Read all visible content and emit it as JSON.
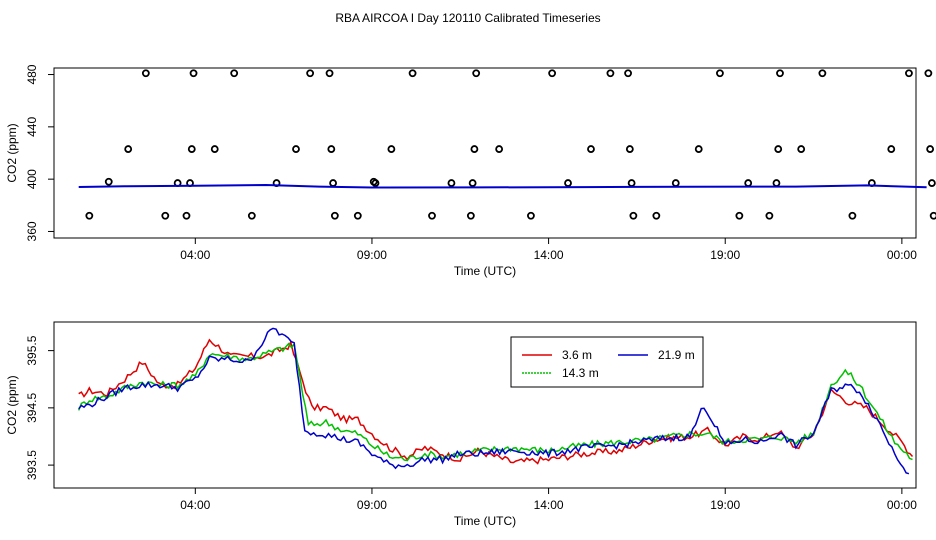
{
  "page": {
    "title": "RBA AIRCOA I  Day 120110  Calibrated Timeseries"
  },
  "colors": {
    "red": "#e00000",
    "green": "#00c000",
    "blue": "#0000cc",
    "axis": "#000000"
  },
  "chart_data": [
    {
      "type": "scatter",
      "xlabel": "Time (UTC)",
      "ylabel": "CO2 (ppm)",
      "xlim": [
        0,
        24.4
      ],
      "ylim": [
        355,
        485
      ],
      "x_ticks": [
        4,
        9,
        14,
        19,
        24
      ],
      "x_tick_labels": [
        "04:00",
        "09:00",
        "14:00",
        "19:00",
        "00:00"
      ],
      "y_ticks": [
        360,
        400,
        440,
        480
      ],
      "y_tick_labels": [
        "360",
        "400",
        "440",
        "480"
      ],
      "points": [
        [
          1.0,
          372
        ],
        [
          1.55,
          398
        ],
        [
          2.1,
          423
        ],
        [
          2.6,
          481
        ],
        [
          3.15,
          372
        ],
        [
          3.5,
          397
        ],
        [
          3.75,
          372
        ],
        [
          3.85,
          397
        ],
        [
          3.9,
          423
        ],
        [
          3.95,
          481
        ],
        [
          4.55,
          423
        ],
        [
          5.1,
          481
        ],
        [
          5.6,
          372
        ],
        [
          6.3,
          397
        ],
        [
          6.85,
          423
        ],
        [
          7.25,
          481
        ],
        [
          7.8,
          481
        ],
        [
          7.85,
          423
        ],
        [
          7.9,
          397
        ],
        [
          7.95,
          372
        ],
        [
          8.6,
          372
        ],
        [
          9.05,
          398
        ],
        [
          9.1,
          397
        ],
        [
          9.55,
          423
        ],
        [
          10.15,
          481
        ],
        [
          10.7,
          372
        ],
        [
          11.25,
          397
        ],
        [
          11.8,
          372
        ],
        [
          11.85,
          397
        ],
        [
          11.9,
          423
        ],
        [
          11.95,
          481
        ],
        [
          12.6,
          423
        ],
        [
          13.5,
          372
        ],
        [
          14.1,
          481
        ],
        [
          14.55,
          397
        ],
        [
          15.2,
          423
        ],
        [
          15.75,
          481
        ],
        [
          16.25,
          481
        ],
        [
          16.3,
          423
        ],
        [
          16.35,
          397
        ],
        [
          16.4,
          372
        ],
        [
          17.05,
          372
        ],
        [
          17.6,
          397
        ],
        [
          18.25,
          423
        ],
        [
          18.85,
          481
        ],
        [
          19.4,
          372
        ],
        [
          19.65,
          397
        ],
        [
          20.25,
          372
        ],
        [
          20.45,
          397
        ],
        [
          20.5,
          423
        ],
        [
          20.55,
          481
        ],
        [
          21.15,
          423
        ],
        [
          21.75,
          481
        ],
        [
          22.6,
          372
        ],
        [
          23.15,
          397
        ],
        [
          23.7,
          423
        ],
        [
          24.2,
          481
        ],
        [
          24.75,
          481
        ],
        [
          24.8,
          423
        ],
        [
          24.85,
          397
        ],
        [
          24.9,
          372
        ]
      ],
      "baseline": [
        [
          0.7,
          394
        ],
        [
          2,
          394.5
        ],
        [
          4,
          395
        ],
        [
          6,
          395.5
        ],
        [
          7.5,
          394.3
        ],
        [
          9,
          393.6
        ],
        [
          12,
          393.7
        ],
        [
          15,
          393.9
        ],
        [
          18,
          394.2
        ],
        [
          21,
          394.3
        ],
        [
          23,
          395.2
        ],
        [
          24.7,
          393.8
        ]
      ]
    },
    {
      "type": "line",
      "xlabel": "Time (UTC)",
      "ylabel": "CO2 (ppm)",
      "xlim": [
        0,
        24.4
      ],
      "ylim": [
        393.1,
        396.0
      ],
      "x_ticks": [
        4,
        9,
        14,
        19,
        24
      ],
      "x_tick_labels": [
        "04:00",
        "09:00",
        "14:00",
        "19:00",
        "00:00"
      ],
      "y_ticks": [
        393.5,
        394.5,
        395.5
      ],
      "y_tick_labels": [
        "393.5",
        "394.5",
        "395.5"
      ],
      "legend": {
        "placement": "top-center",
        "entries": [
          "3.6 m",
          "21.9 m",
          "14.3 m"
        ]
      },
      "series": [
        {
          "name": "3.6 m",
          "color": "#e00000",
          "points": [
            [
              0.7,
              394.7
            ],
            [
              1.0,
              394.8
            ],
            [
              1.5,
              394.75
            ],
            [
              2.0,
              395.0
            ],
            [
              2.5,
              395.3
            ],
            [
              3.0,
              394.9
            ],
            [
              3.5,
              394.9
            ],
            [
              4.0,
              395.2
            ],
            [
              4.4,
              395.7
            ],
            [
              5.0,
              395.4
            ],
            [
              5.5,
              395.4
            ],
            [
              6.0,
              395.4
            ],
            [
              6.7,
              395.6
            ],
            [
              7.3,
              394.5
            ],
            [
              7.7,
              394.5
            ],
            [
              8.2,
              394.3
            ],
            [
              8.6,
              394.3
            ],
            [
              9.0,
              394.05
            ],
            [
              9.5,
              393.8
            ],
            [
              10.0,
              393.65
            ],
            [
              10.5,
              393.8
            ],
            [
              11.0,
              393.7
            ],
            [
              11.5,
              393.6
            ],
            [
              12.0,
              393.75
            ],
            [
              13.0,
              393.55
            ],
            [
              14.0,
              393.6
            ],
            [
              15.0,
              393.7
            ],
            [
              16.0,
              393.75
            ],
            [
              17.0,
              393.95
            ],
            [
              18.0,
              394.0
            ],
            [
              18.5,
              394.1
            ],
            [
              19.0,
              393.85
            ],
            [
              19.5,
              394.0
            ],
            [
              20.0,
              393.95
            ],
            [
              20.5,
              394.1
            ],
            [
              21.0,
              393.8
            ],
            [
              21.5,
              394.05
            ],
            [
              22.0,
              394.8
            ],
            [
              22.5,
              394.6
            ],
            [
              23.0,
              394.5
            ],
            [
              23.5,
              394.2
            ],
            [
              24.0,
              393.9
            ],
            [
              24.3,
              393.65
            ]
          ]
        },
        {
          "name": "14.3 m",
          "color": "#00c000",
          "points": [
            [
              0.7,
              394.5
            ],
            [
              1.0,
              394.65
            ],
            [
              1.5,
              394.7
            ],
            [
              2.0,
              394.85
            ],
            [
              2.5,
              394.95
            ],
            [
              3.0,
              394.9
            ],
            [
              3.5,
              394.9
            ],
            [
              4.0,
              395.05
            ],
            [
              4.4,
              395.45
            ],
            [
              5.0,
              395.4
            ],
            [
              5.5,
              395.35
            ],
            [
              6.0,
              395.45
            ],
            [
              6.8,
              395.6
            ],
            [
              7.2,
              394.2
            ],
            [
              7.7,
              394.25
            ],
            [
              8.2,
              394.1
            ],
            [
              8.6,
              394.05
            ],
            [
              9.0,
              393.85
            ],
            [
              9.5,
              393.65
            ],
            [
              10.0,
              393.6
            ],
            [
              10.5,
              393.7
            ],
            [
              11.0,
              393.65
            ],
            [
              11.5,
              393.7
            ],
            [
              12.0,
              393.75
            ],
            [
              13.0,
              393.8
            ],
            [
              14.0,
              393.75
            ],
            [
              15.0,
              393.85
            ],
            [
              16.0,
              393.9
            ],
            [
              17.0,
              393.95
            ],
            [
              18.0,
              394.05
            ],
            [
              18.5,
              394.05
            ],
            [
              19.0,
              393.9
            ],
            [
              19.5,
              393.95
            ],
            [
              20.0,
              393.95
            ],
            [
              20.5,
              394.0
            ],
            [
              21.0,
              393.9
            ],
            [
              21.5,
              394.05
            ],
            [
              22.0,
              394.9
            ],
            [
              22.4,
              395.15
            ],
            [
              22.8,
              394.9
            ],
            [
              23.3,
              394.4
            ],
            [
              23.8,
              393.9
            ],
            [
              24.3,
              393.6
            ]
          ]
        },
        {
          "name": "21.9 m",
          "color": "#0000cc",
          "points": [
            [
              0.7,
              394.5
            ],
            [
              1.0,
              394.55
            ],
            [
              1.5,
              394.7
            ],
            [
              2.0,
              394.85
            ],
            [
              2.5,
              394.9
            ],
            [
              3.0,
              394.9
            ],
            [
              3.5,
              394.85
            ],
            [
              4.0,
              395.0
            ],
            [
              4.4,
              395.35
            ],
            [
              5.0,
              395.35
            ],
            [
              5.5,
              395.3
            ],
            [
              6.2,
              395.9
            ],
            [
              6.8,
              395.6
            ],
            [
              7.1,
              394.1
            ],
            [
              7.6,
              394.05
            ],
            [
              8.2,
              393.95
            ],
            [
              8.6,
              393.9
            ],
            [
              9.0,
              393.7
            ],
            [
              9.5,
              393.5
            ],
            [
              10.0,
              393.5
            ],
            [
              10.5,
              393.6
            ],
            [
              11.0,
              393.6
            ],
            [
              11.5,
              393.7
            ],
            [
              12.0,
              393.7
            ],
            [
              13.0,
              393.75
            ],
            [
              14.0,
              393.7
            ],
            [
              15.0,
              393.8
            ],
            [
              16.0,
              393.85
            ],
            [
              17.0,
              393.95
            ],
            [
              18.0,
              394.0
            ],
            [
              18.4,
              394.55
            ],
            [
              19.0,
              393.85
            ],
            [
              19.5,
              393.95
            ],
            [
              20.0,
              393.9
            ],
            [
              20.5,
              394.05
            ],
            [
              21.0,
              393.85
            ],
            [
              21.5,
              394.05
            ],
            [
              22.0,
              394.8
            ],
            [
              22.4,
              394.9
            ],
            [
              22.8,
              394.8
            ],
            [
              23.3,
              394.3
            ],
            [
              23.8,
              393.7
            ],
            [
              24.2,
              393.35
            ]
          ]
        }
      ]
    }
  ]
}
